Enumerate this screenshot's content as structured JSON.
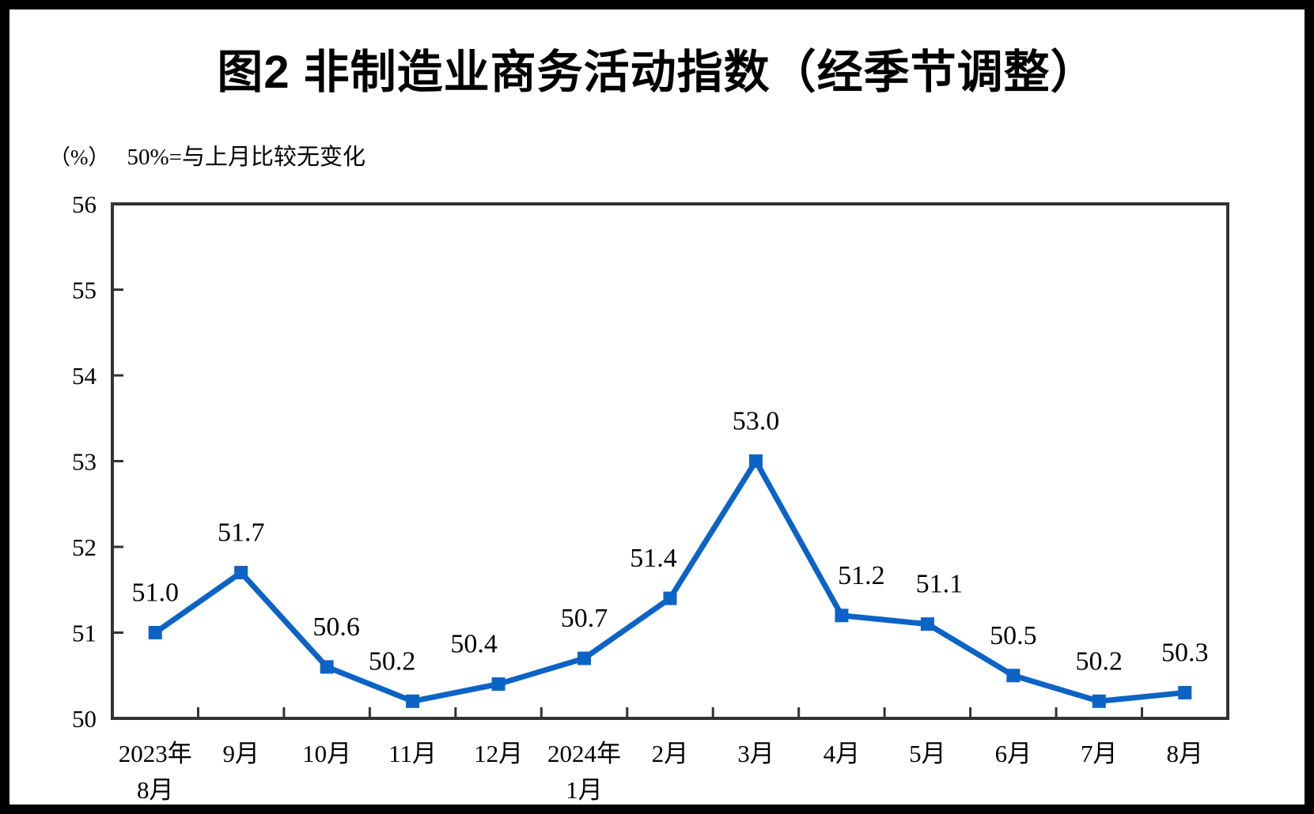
{
  "chart_data": {
    "type": "line",
    "title": "图2 非制造业商务活动指数（经季节调整）",
    "unit_label": "（%）",
    "note": "50%=与上月比较无变化",
    "categories": [
      [
        "2023年",
        "8月"
      ],
      [
        "9月"
      ],
      [
        "10月"
      ],
      [
        "11月"
      ],
      [
        "12月"
      ],
      [
        "2024年",
        "1月"
      ],
      [
        "2月"
      ],
      [
        "3月"
      ],
      [
        "4月"
      ],
      [
        "5月"
      ],
      [
        "6月"
      ],
      [
        "7月"
      ],
      [
        "8月"
      ]
    ],
    "values": [
      51.0,
      51.7,
      50.6,
      50.2,
      50.4,
      50.7,
      51.4,
      53.0,
      51.2,
      51.1,
      50.5,
      50.2,
      50.3
    ],
    "data_labels": [
      "51.0",
      "51.7",
      "50.6",
      "50.2",
      "50.4",
      "50.7",
      "51.4",
      "53.0",
      "51.2",
      "51.1",
      "50.5",
      "50.2",
      "50.3"
    ],
    "ylim": [
      50,
      56
    ],
    "yticks": [
      50,
      51,
      52,
      53,
      54,
      55,
      56
    ],
    "grid": false,
    "legend": "none",
    "colors": {
      "line": "#0C63C6",
      "marker": "#0C63C6",
      "axis": "#333333",
      "text": "#000000",
      "frame": "#000000",
      "background": "#FFFFFF"
    }
  }
}
